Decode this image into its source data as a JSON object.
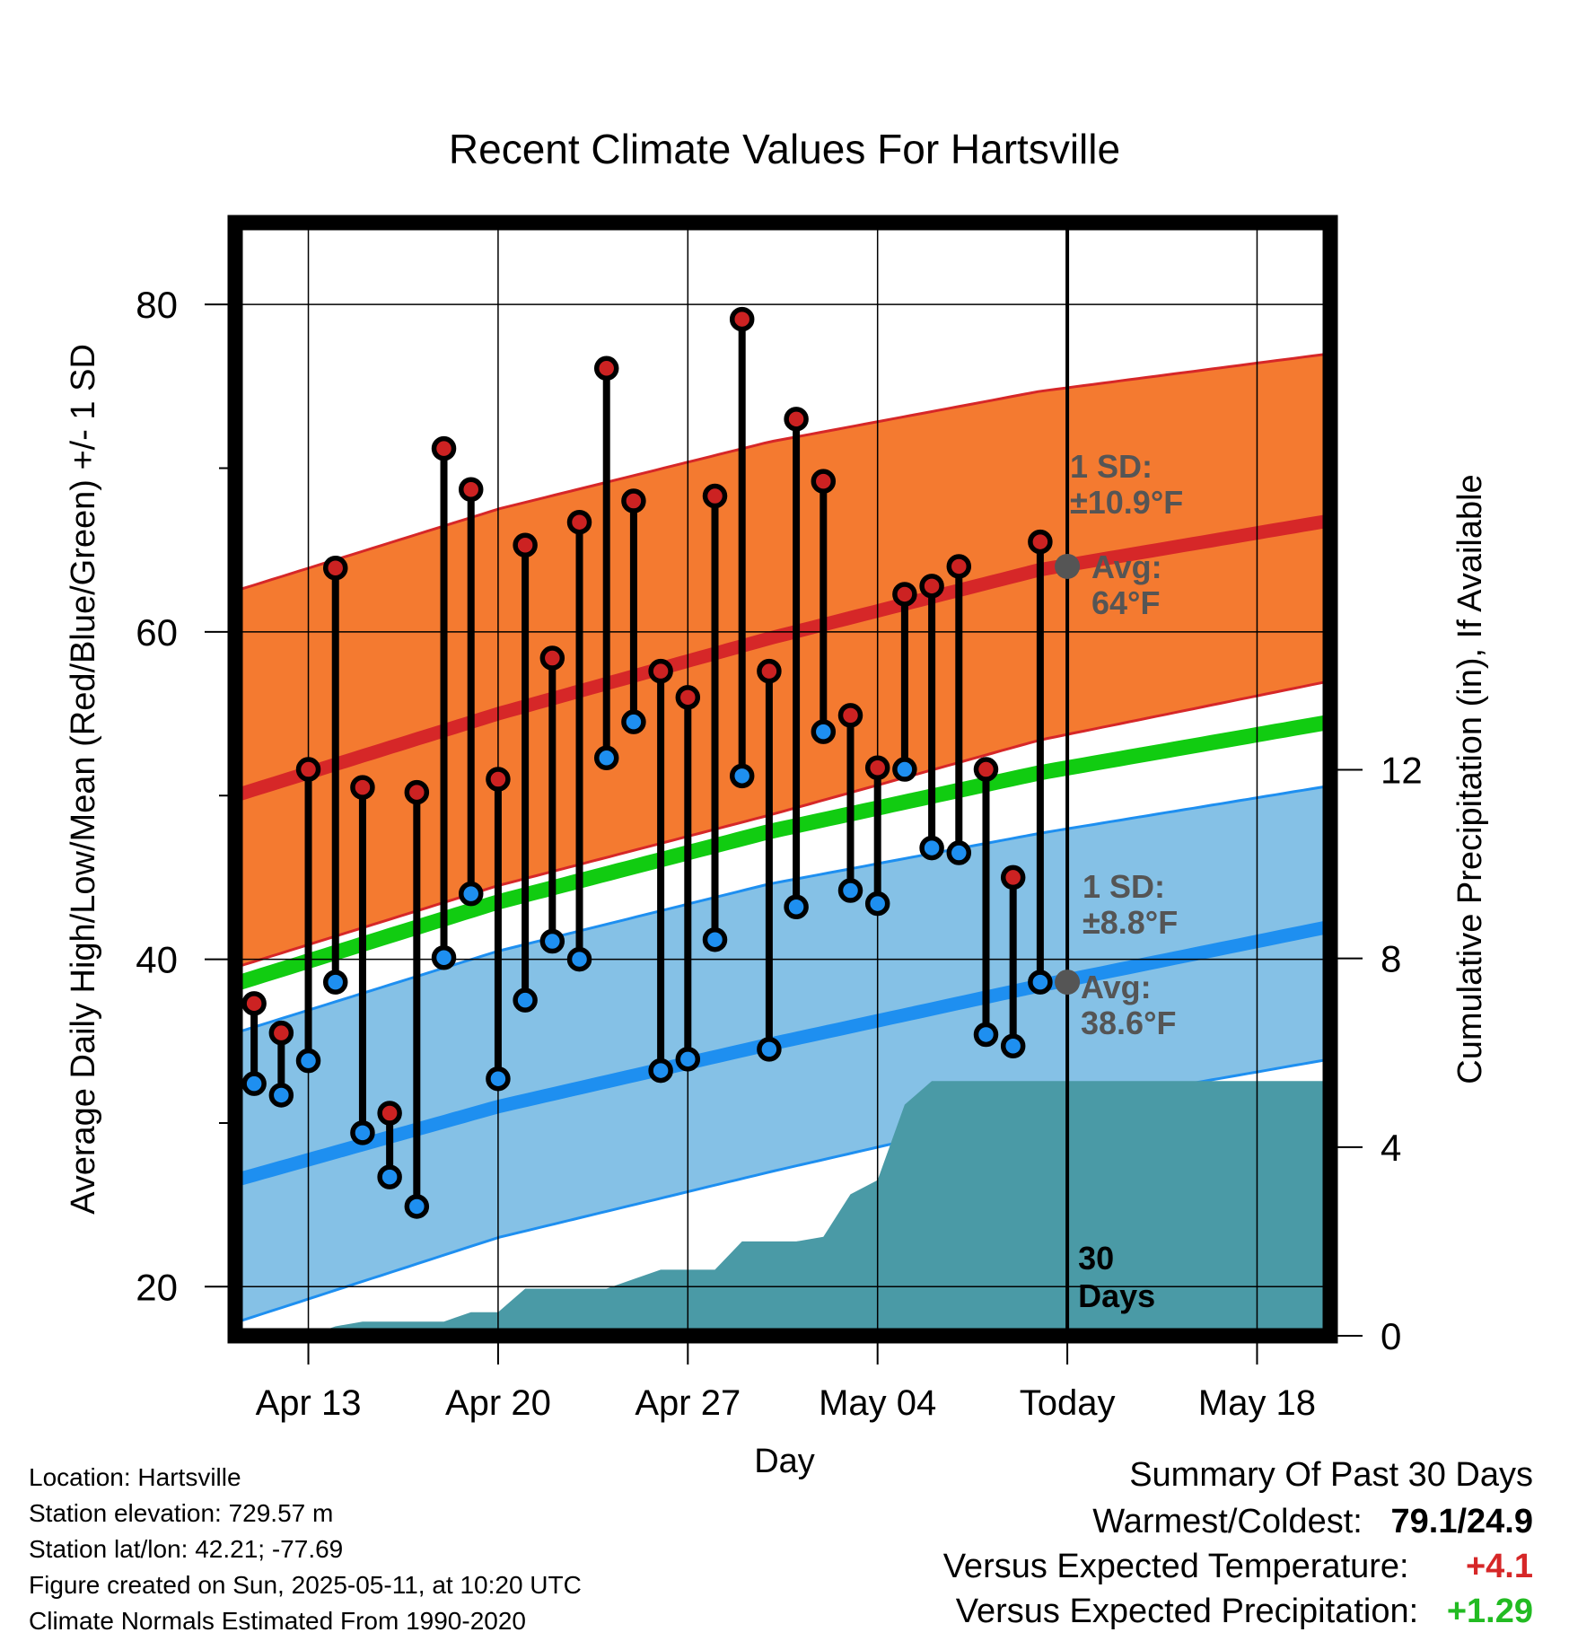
{
  "chart_data": {
    "type": "line",
    "title": "Recent Climate Values For Hartsville",
    "xlabel": "Day",
    "ylabel": "Average Daily High/Low/Mean (Red/Blue/Green) +/- 1 SD",
    "y2label": "Cumulative Precipitation (in), If Available",
    "ylim": [
      17,
      85
    ],
    "y2lim": [
      0,
      23.6
    ],
    "day_range": [
      10.3,
      22
    ],
    "x_ticks": [
      {
        "day": 13,
        "label": "Apr 13"
      },
      {
        "day": 20,
        "label": "Apr 20"
      },
      {
        "day": 27,
        "label": "Apr 27"
      },
      {
        "day": 34,
        "label": "May 04"
      },
      {
        "day": 41,
        "label": "Today"
      },
      {
        "day": 48,
        "label": "May 18"
      }
    ],
    "y_ticks": [
      20,
      40,
      60,
      80
    ],
    "y_minor_ticks": [
      30,
      50,
      70
    ],
    "y2_ticks": [
      0,
      4,
      8,
      12
    ],
    "grid": true,
    "today_day": 41,
    "days_label": [
      "30",
      "Days"
    ],
    "normals": {
      "days": [
        10.3,
        20,
        30,
        40,
        50.7
      ],
      "high_mean": [
        50.0,
        55.0,
        59.6,
        63.8,
        66.8
      ],
      "high_upper": [
        62.5,
        67.5,
        71.6,
        74.7,
        77.0
      ],
      "high_lower": [
        39.5,
        44.5,
        48.8,
        53.4,
        57.0
      ],
      "mean": [
        38.5,
        43.5,
        47.8,
        51.4,
        54.5
      ],
      "low_mean": [
        26.5,
        31.0,
        34.8,
        38.4,
        42.0
      ],
      "low_upper": [
        35.5,
        40.5,
        44.6,
        47.7,
        50.6
      ],
      "low_lower": [
        17.8,
        23.0,
        27.0,
        30.8,
        33.9
      ],
      "high_sd_label": [
        "1 SD:",
        "±10.9°F"
      ],
      "high_avg_label": [
        "Avg:",
        "64°F"
      ],
      "low_sd_label": [
        "1 SD:",
        "±8.8°F"
      ],
      "low_avg_label": [
        "Avg:",
        "38.6°F"
      ],
      "high_avg_value": 64,
      "low_avg_value": 38.6
    },
    "series": [
      {
        "name": "High",
        "color": "#cc2222",
        "days": [
          11,
          12,
          13,
          14,
          15,
          16,
          17,
          18,
          19,
          20,
          21,
          22,
          23,
          24,
          25,
          26,
          27,
          28,
          29,
          30,
          31,
          32,
          33,
          34,
          35,
          36,
          37,
          38,
          39,
          40
        ],
        "values": [
          37.3,
          35.5,
          51.6,
          63.9,
          50.5,
          30.6,
          50.2,
          71.2,
          68.7,
          51.0,
          65.3,
          58.4,
          66.7,
          76.1,
          68.0,
          57.6,
          56.0,
          68.3,
          79.1,
          57.6,
          73.0,
          69.2,
          54.9,
          51.7,
          62.3,
          62.8,
          64.0,
          51.6,
          45.0,
          65.5
        ]
      },
      {
        "name": "Low",
        "color": "#1e8ff0",
        "days": [
          11,
          12,
          13,
          14,
          15,
          16,
          17,
          18,
          19,
          20,
          21,
          22,
          23,
          24,
          25,
          26,
          27,
          28,
          29,
          30,
          31,
          32,
          33,
          34,
          35,
          36,
          37,
          38,
          39,
          40
        ],
        "values": [
          32.4,
          31.7,
          33.8,
          38.6,
          29.4,
          26.7,
          24.9,
          40.1,
          44.0,
          32.7,
          37.5,
          41.1,
          40.0,
          52.3,
          54.5,
          33.2,
          33.9,
          41.2,
          51.2,
          34.5,
          43.2,
          53.9,
          44.2,
          43.4,
          51.6,
          46.8,
          46.5,
          35.4,
          34.7,
          38.6
        ]
      }
    ],
    "precip": {
      "color": "#4a9aa6",
      "days": [
        10.3,
        12,
        13,
        14,
        15,
        16,
        17,
        18,
        19,
        20,
        21,
        22,
        23,
        24,
        25,
        26,
        27,
        28,
        29,
        30,
        31,
        32,
        33,
        34,
        35,
        36,
        37,
        38,
        39,
        40,
        41,
        50.7
      ],
      "values": [
        0,
        0,
        0,
        0.2,
        0.3,
        0.3,
        0.3,
        0.3,
        0.5,
        0.5,
        1.0,
        1.0,
        1.0,
        1.0,
        1.2,
        1.4,
        1.4,
        1.4,
        2.0,
        2.0,
        2.0,
        2.1,
        3.0,
        3.3,
        4.9,
        5.4,
        5.4,
        5.4,
        5.4,
        5.4,
        5.4,
        5.4
      ]
    }
  },
  "footer": {
    "location": "Location: Hartsville",
    "elevation": "Station elevation: 729.57 m",
    "latlon": "Station lat/lon: 42.21; -77.69",
    "created": "Figure created on Sun, 2025-05-11, at 10:20 UTC",
    "normals": "Climate Normals Estimated From 1990-2020"
  },
  "summary": {
    "title": "Summary Of Past 30 Days",
    "warm_cold_label": "Warmest/Coldest:",
    "warm_cold_value": "79.1/24.9",
    "temp_label": "Versus Expected Temperature:",
    "temp_value": "+4.1",
    "temp_color": "#d62728",
    "precip_label": "Versus Expected Precipitation:",
    "precip_value": "+1.29",
    "precip_color": "#22bb22"
  }
}
